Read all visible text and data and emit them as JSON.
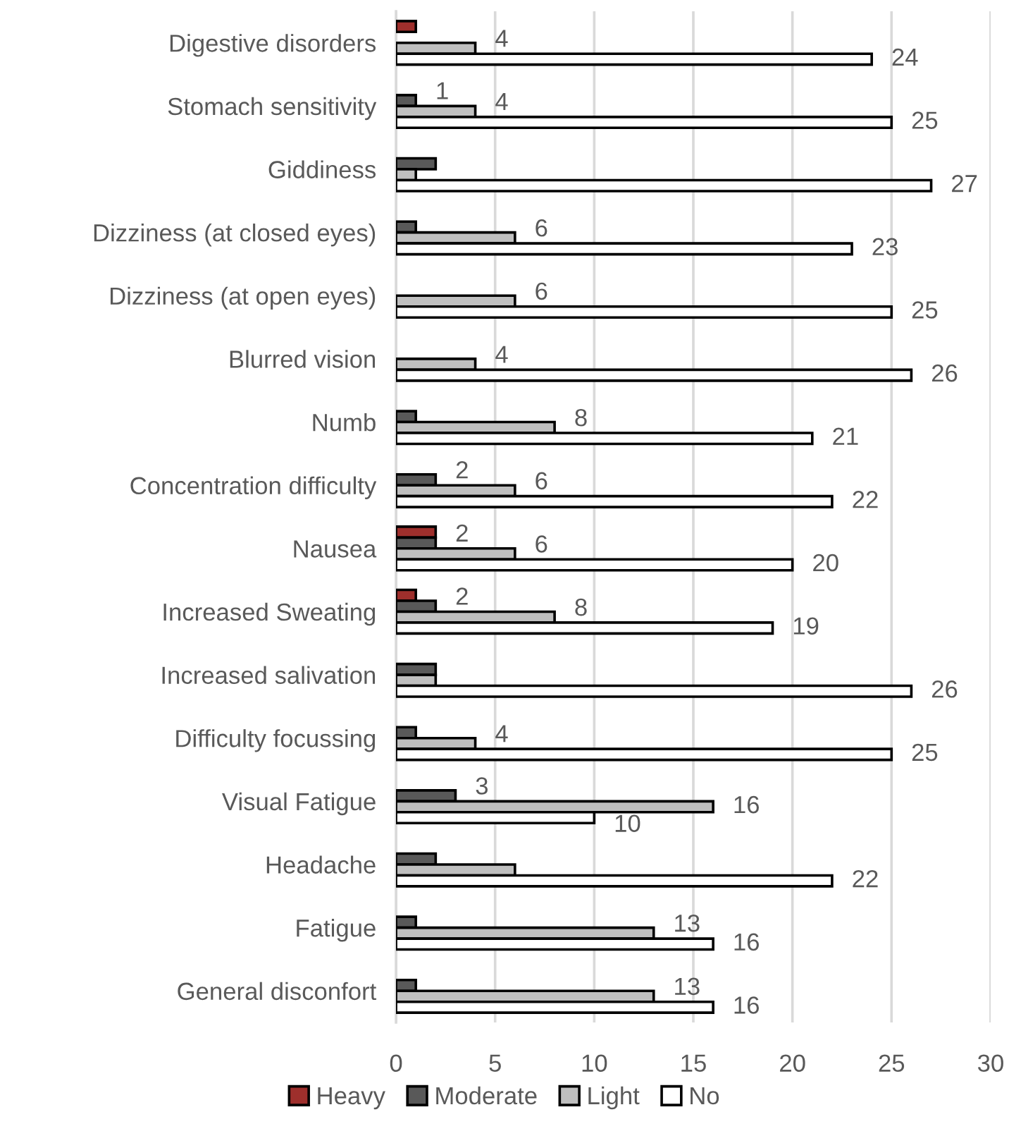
{
  "chart_data": {
    "type": "bar",
    "orientation": "horizontal",
    "categories": [
      "Digestive disorders",
      "Stomach sensitivity",
      "Giddiness",
      "Dizziness (at closed eyes)",
      "Dizziness (at open eyes)",
      "Blurred vision",
      "Numb",
      "Concentration difficulty",
      "Nausea",
      "Increased Sweating",
      "Increased salivation",
      "Difficulty focussing",
      "Visual Fatigue",
      "Headache",
      "Fatigue",
      "General disconfort"
    ],
    "series": [
      {
        "name": "Heavy",
        "color": "#9e2f2c",
        "values": [
          1,
          0,
          0,
          0,
          0,
          0,
          0,
          0,
          2,
          1,
          0,
          0,
          0,
          0,
          0,
          0
        ]
      },
      {
        "name": "Moderate",
        "color": "#595959",
        "values": [
          0,
          1,
          2,
          1,
          0,
          0,
          1,
          2,
          2,
          2,
          2,
          1,
          3,
          2,
          1,
          1
        ],
        "value_labels": [
          null,
          "1",
          null,
          null,
          null,
          null,
          null,
          "2",
          "2",
          "2",
          null,
          null,
          "3",
          null,
          null,
          null
        ]
      },
      {
        "name": "Light",
        "color": "#bfbfbf",
        "values": [
          4,
          4,
          1,
          6,
          6,
          4,
          8,
          6,
          6,
          8,
          2,
          4,
          16,
          6,
          13,
          13
        ],
        "value_labels": [
          "4",
          "4",
          null,
          "6",
          "6",
          "4",
          "8",
          "6",
          "6",
          "8",
          null,
          "4",
          "16",
          null,
          "13",
          "13"
        ]
      },
      {
        "name": "No",
        "color": "#ffffff",
        "values": [
          24,
          25,
          27,
          23,
          25,
          26,
          21,
          22,
          20,
          19,
          26,
          25,
          10,
          22,
          16,
          16
        ],
        "value_labels": [
          "24",
          "25",
          "27",
          "23",
          "25",
          "26",
          "21",
          "22",
          "20",
          "19",
          "26",
          "25",
          "10",
          "22",
          "16",
          "16"
        ]
      }
    ],
    "xlim": [
      0,
      30
    ],
    "xticks": [
      0,
      5,
      10,
      15,
      20,
      25,
      30
    ],
    "grid": "x",
    "legend": "bottom"
  }
}
